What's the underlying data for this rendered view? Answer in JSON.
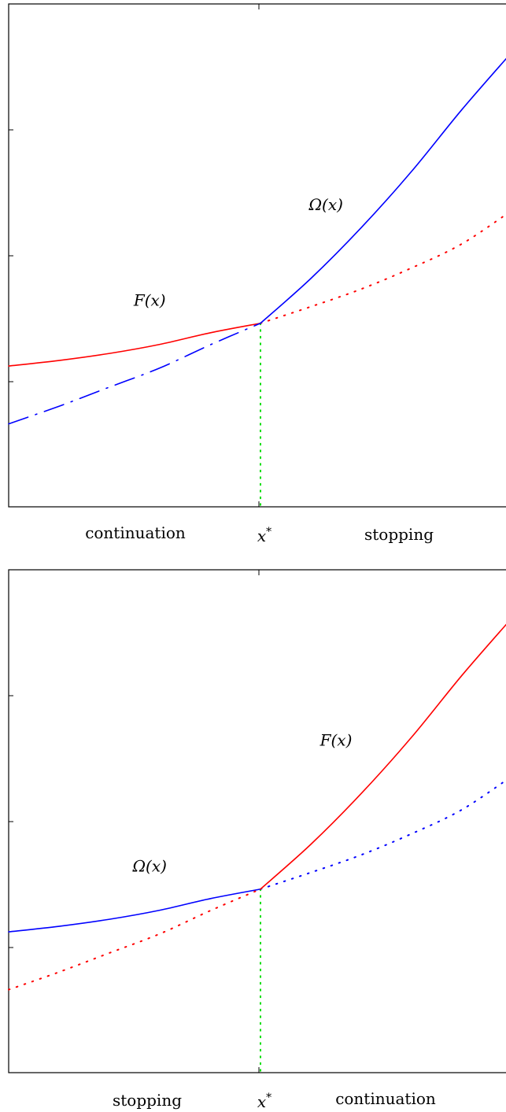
{
  "chart_data": [
    {
      "type": "line",
      "threshold_label": "x*",
      "region_left_label": "continuation",
      "region_right_label": "stopping",
      "xlim": [
        0,
        1
      ],
      "ylim": [
        0,
        1
      ],
      "threshold_x": 0.5,
      "series": [
        {
          "name": "F(x)",
          "color": "#ff0000",
          "left_style": "solid",
          "right_style": "dotted",
          "x": [
            0,
            0.1,
            0.2,
            0.3,
            0.4,
            0.5,
            0.6,
            0.7,
            0.8,
            0.9,
            1.0
          ],
          "y": [
            0.28,
            0.291,
            0.305,
            0.323,
            0.346,
            0.365,
            0.398,
            0.433,
            0.475,
            0.523,
            0.59
          ]
        },
        {
          "name": "Ω(x)",
          "color": "#0000ff",
          "left_style": "dashdot",
          "right_style": "solid",
          "x": [
            0,
            0.1,
            0.2,
            0.3,
            0.4,
            0.5,
            0.6,
            0.7,
            0.8,
            0.9,
            1.0
          ],
          "y": [
            0.165,
            0.2,
            0.238,
            0.276,
            0.322,
            0.365,
            0.454,
            0.555,
            0.667,
            0.79,
            0.905
          ]
        }
      ],
      "label_positions": [
        {
          "series": "F(x)",
          "x": 0.28,
          "y": 0.4
        },
        {
          "series": "Ω(x)",
          "x": 0.63,
          "y": 0.59
        }
      ]
    },
    {
      "type": "line",
      "threshold_label": "x*",
      "region_left_label": "stopping",
      "region_right_label": "continuation",
      "xlim": [
        0,
        1
      ],
      "ylim": [
        0,
        1
      ],
      "threshold_x": 0.5,
      "series": [
        {
          "name": "Ω(x)",
          "color": "#0000ff",
          "left_style": "solid",
          "right_style": "dotted",
          "x": [
            0,
            0.1,
            0.2,
            0.3,
            0.4,
            0.5,
            0.6,
            0.7,
            0.8,
            0.9,
            1.0
          ],
          "y": [
            0.28,
            0.291,
            0.305,
            0.323,
            0.346,
            0.365,
            0.398,
            0.433,
            0.475,
            0.523,
            0.59
          ]
        },
        {
          "name": "F(x)",
          "color": "#ff0000",
          "left_style": "dotted",
          "right_style": "solid",
          "x": [
            0,
            0.1,
            0.2,
            0.3,
            0.4,
            0.5,
            0.6,
            0.7,
            0.8,
            0.9,
            1.0
          ],
          "y": [
            0.165,
            0.2,
            0.238,
            0.276,
            0.322,
            0.365,
            0.454,
            0.555,
            0.667,
            0.79,
            0.905
          ]
        }
      ],
      "label_positions": [
        {
          "series": "Ω(x)",
          "x": 0.28,
          "y": 0.4
        },
        {
          "series": "F(x)",
          "x": 0.65,
          "y": 0.65
        }
      ]
    }
  ]
}
